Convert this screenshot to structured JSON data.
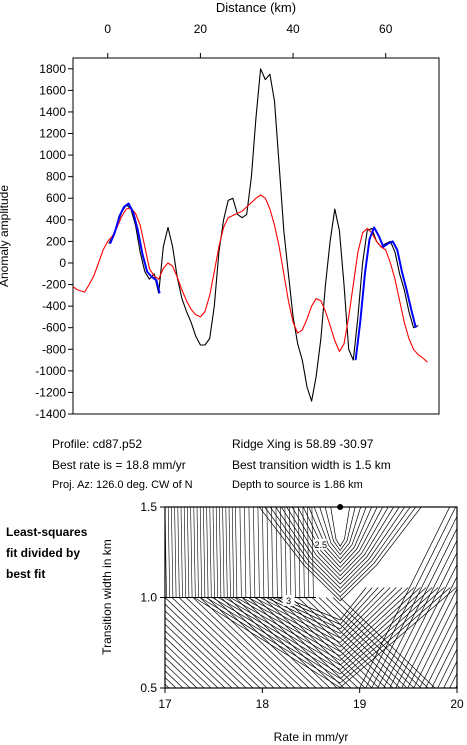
{
  "chart_data": [
    {
      "type": "line",
      "title": "",
      "xlabel": "Distance (km)",
      "ylabel": "Anomaly amplitude",
      "xlim": [
        -7.5,
        71.5
      ],
      "ylim": [
        -1400,
        1900
      ],
      "x_ticks": [
        0,
        20,
        40,
        60
      ],
      "y_ticks": [
        -1400,
        -1200,
        -1000,
        -800,
        -600,
        -400,
        -200,
        0,
        200,
        400,
        600,
        800,
        1000,
        1200,
        1400,
        1600,
        1800
      ],
      "x_axis_position": "top",
      "grid": false,
      "series": [
        {
          "color": "#000000",
          "x": [
            0.2,
            1,
            2,
            3,
            4,
            5,
            6,
            7,
            8,
            9,
            10,
            11,
            12,
            13,
            14,
            15,
            16,
            17,
            18,
            19,
            20,
            21,
            22,
            23,
            24,
            25,
            26,
            27,
            28,
            29,
            30,
            31,
            32,
            33,
            34,
            35,
            36,
            37,
            38,
            39,
            40,
            41,
            42,
            43,
            44,
            45,
            46,
            47,
            48,
            49,
            50,
            51,
            52,
            53,
            54,
            55,
            56,
            57,
            58,
            59,
            60,
            61,
            62,
            63,
            64,
            65,
            66,
            67
          ],
          "y": [
            180,
            240,
            350,
            470,
            540,
            500,
            350,
            100,
            -80,
            -150,
            -100,
            -280,
            150,
            330,
            150,
            -130,
            -330,
            -450,
            -550,
            -680,
            -760,
            -760,
            -700,
            -400,
            100,
            400,
            580,
            600,
            450,
            420,
            450,
            800,
            1350,
            1800,
            1700,
            1750,
            1500,
            900,
            300,
            -100,
            -500,
            -750,
            -900,
            -1150,
            -1280,
            -1050,
            -700,
            -200,
            200,
            500,
            300,
            -200,
            -800,
            -900,
            -500,
            0,
            300,
            320,
            200,
            150,
            180,
            200,
            100,
            -100,
            -250,
            -450,
            -600,
            -580
          ]
        },
        {
          "color": "#ff0000",
          "x": [
            -7.5,
            -6.5,
            -5,
            -4,
            -3,
            -2,
            -1,
            0,
            1,
            2,
            3,
            4,
            5,
            6,
            7,
            8,
            9,
            10,
            11,
            12,
            13,
            14,
            15,
            16,
            17,
            18,
            19,
            20,
            21,
            22,
            23,
            24,
            25,
            26,
            27,
            28,
            29,
            30,
            31,
            32,
            33,
            34,
            35,
            36,
            37,
            38,
            39,
            40,
            41,
            42,
            43,
            44,
            45,
            46,
            47,
            48,
            49,
            50,
            51,
            52,
            53,
            54,
            55,
            56,
            57,
            58,
            59,
            60,
            61,
            62,
            63,
            64,
            65,
            66,
            67,
            68,
            69
          ],
          "y": [
            -220,
            -250,
            -270,
            -200,
            -120,
            0,
            120,
            200,
            250,
            330,
            430,
            500,
            510,
            460,
            350,
            150,
            -50,
            -120,
            -150,
            -50,
            0,
            -30,
            -130,
            -250,
            -350,
            -430,
            -480,
            -500,
            -450,
            -300,
            -80,
            150,
            330,
            420,
            440,
            460,
            480,
            520,
            560,
            600,
            630,
            600,
            500,
            350,
            150,
            -100,
            -350,
            -550,
            -650,
            -620,
            -520,
            -400,
            -330,
            -350,
            -450,
            -580,
            -720,
            -820,
            -750,
            -500,
            -200,
            100,
            280,
            320,
            280,
            200,
            150,
            120,
            0,
            -150,
            -350,
            -550,
            -700,
            -800,
            -850,
            -880,
            -920
          ]
        },
        {
          "color": "#0000ff",
          "x": [
            0.5,
            1.5,
            2.5,
            3.5,
            4.5,
            5.5,
            6.5,
            7.5,
            8.5,
            9.5,
            10.5,
            11.2
          ],
          "y": [
            180,
            280,
            430,
            520,
            550,
            470,
            300,
            80,
            -80,
            -130,
            -160,
            -280
          ]
        },
        {
          "color": "#0000ff",
          "x": [
            53.5,
            54.5,
            55.5,
            56.5,
            57.5,
            58.5,
            59.5,
            60.5,
            61.5,
            62.5,
            63.5,
            64.5,
            65.5,
            66.5
          ],
          "y": [
            -900,
            -550,
            -100,
            220,
            330,
            250,
            150,
            180,
            200,
            120,
            -80,
            -250,
            -430,
            -600
          ]
        }
      ]
    },
    {
      "type": "contour",
      "title": "",
      "xlabel": "Rate in mm/yr",
      "ylabel": "Transition width in km",
      "xlim": [
        17,
        20
      ],
      "ylim": [
        0.5,
        1.5
      ],
      "x_ticks": [
        17,
        18,
        19,
        20
      ],
      "y_ticks": [
        0.5,
        1.0,
        1.5
      ],
      "x_tick_labels": [
        "17",
        "18",
        "19",
        "20"
      ],
      "y_tick_labels": [
        "0.5",
        "1.0",
        "1.5"
      ],
      "contour_labels": [
        {
          "text": "2.5",
          "x": 18.6,
          "y": 1.28
        },
        {
          "text": "3",
          "x": 18.27,
          "y": 0.97
        }
      ],
      "best_fit_marker": {
        "x": 18.8,
        "y": 1.5
      },
      "side_label": [
        "Least-squares",
        "fit divided by",
        "best fit"
      ]
    }
  ],
  "info": {
    "profile": "Profile: cd87.p52",
    "best_rate": "Best rate is = 18.8 mm/yr",
    "proj_az": "Proj. Az: 126.0 deg. CW of N",
    "ridge_xing": "Ridge Xing is 58.89 -30.97",
    "best_transition": "Best transition width is 1.5 km",
    "depth_to_source": "Depth to source is   1.86 km"
  }
}
